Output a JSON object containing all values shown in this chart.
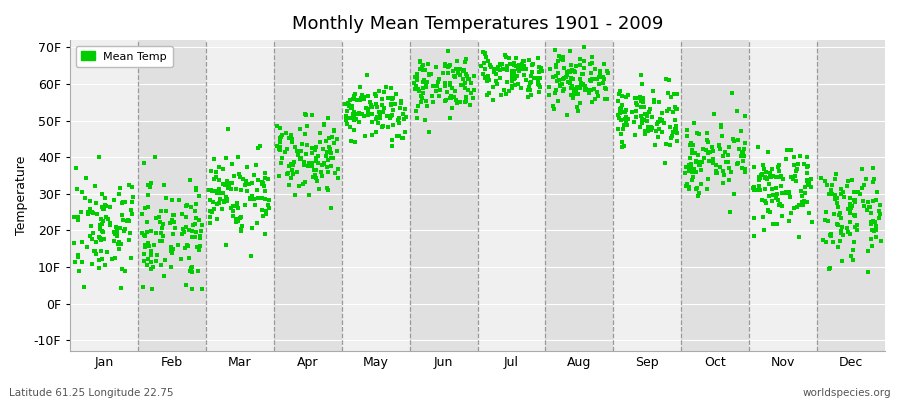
{
  "title": "Monthly Mean Temperatures 1901 - 2009",
  "ylabel": "Temperature",
  "xlabel_labels": [
    "Jan",
    "Feb",
    "Mar",
    "Apr",
    "May",
    "Jun",
    "Jul",
    "Aug",
    "Sep",
    "Oct",
    "Nov",
    "Dec"
  ],
  "ytick_labels": [
    "-10F",
    "0F",
    "10F",
    "20F",
    "30F",
    "40F",
    "50F",
    "60F",
    "70F"
  ],
  "ytick_values": [
    -10,
    0,
    10,
    20,
    30,
    40,
    50,
    60,
    70
  ],
  "ylim": [
    -13,
    72
  ],
  "dot_color": "#00cc00",
  "dot_marker": "s",
  "legend_label": "Mean Temp",
  "bg_color": "#ffffff",
  "plot_bg_color_light": "#f0f0f0",
  "plot_bg_color_dark": "#e0e0e0",
  "footer_left": "Latitude 61.25 Longitude 22.75",
  "footer_right": "worldspecies.org",
  "n_years": 109,
  "monthly_means_F": [
    21,
    20,
    30,
    41,
    52,
    60,
    63,
    61,
    51,
    40,
    31,
    24
  ],
  "monthly_stds_F": [
    7,
    7,
    6,
    5,
    4,
    4,
    3,
    4,
    4,
    5,
    5,
    6
  ],
  "seed": 7
}
